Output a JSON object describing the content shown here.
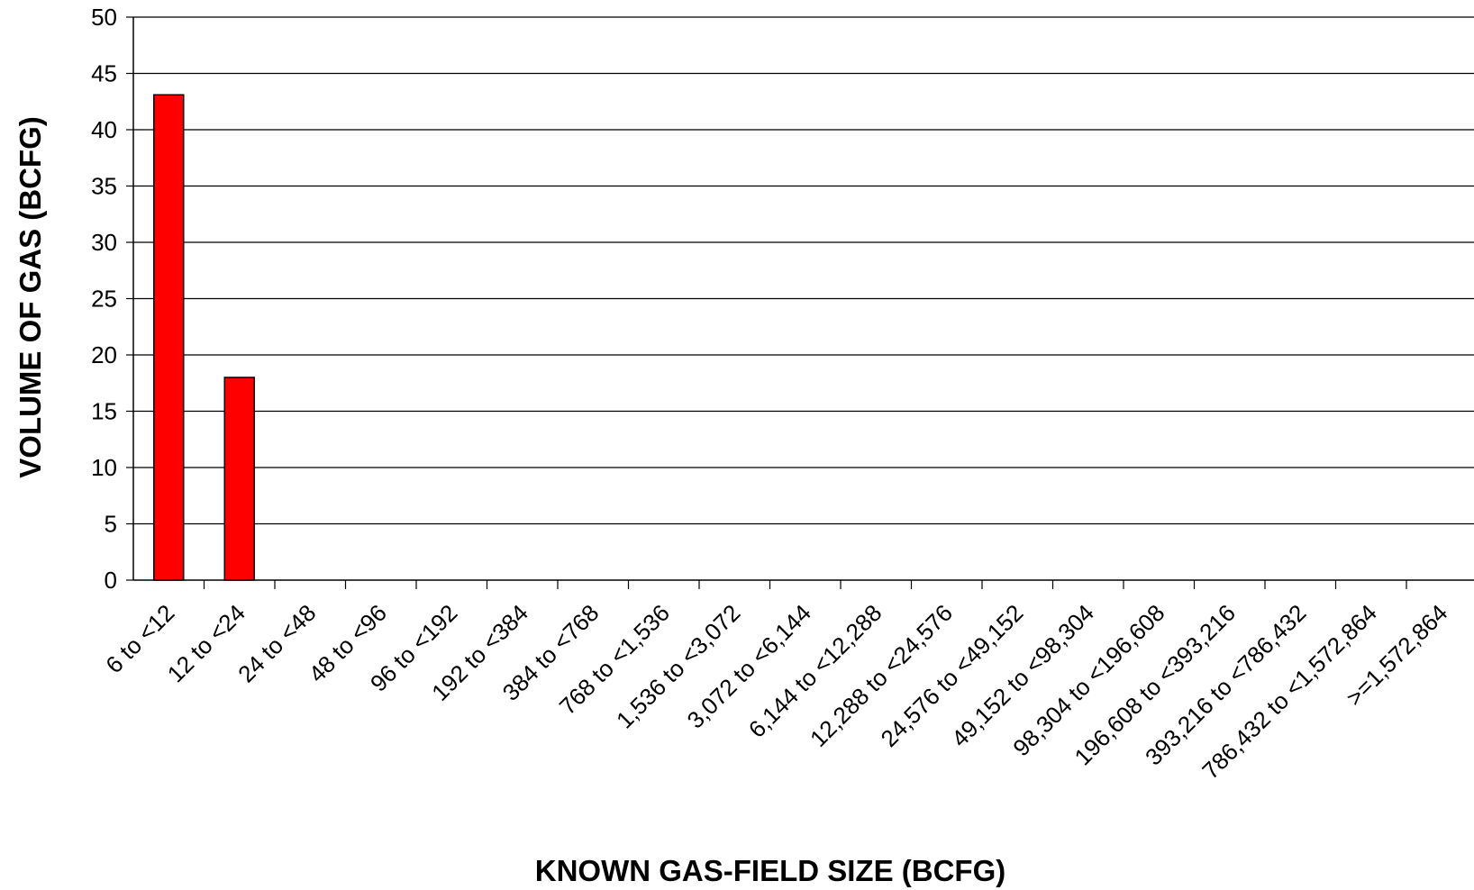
{
  "chart_data": {
    "type": "bar",
    "title": "",
    "xlabel": "KNOWN GAS-FIELD SIZE (BCFG)",
    "ylabel": "VOLUME OF GAS (BCFG)",
    "ylim": [
      0,
      50
    ],
    "yticks": [
      0,
      5,
      10,
      15,
      20,
      25,
      30,
      35,
      40,
      45,
      50
    ],
    "grid": true,
    "legend": "none",
    "bar_color": "#ff0000",
    "categories": [
      "6 to <12",
      "12 to <24",
      "24 to <48",
      "48 to <96",
      "96 to <192",
      "192 to <384",
      "384 to <768",
      "768 to <1,536",
      "1,536 to <3,072",
      "3,072 to <6,144",
      "6,144 to <12,288",
      "12,288 to <24,576",
      "24,576 to <49,152",
      "49,152 to <98,304",
      "98,304 to <196,608",
      "196,608 to <393,216",
      "393,216 to <786,432",
      "786,432 to <1,572,864",
      ">=1,572,864"
    ],
    "values": [
      43.1,
      18,
      0,
      0,
      0,
      0,
      0,
      0,
      0,
      0,
      0,
      0,
      0,
      0,
      0,
      0,
      0,
      0,
      0
    ]
  }
}
